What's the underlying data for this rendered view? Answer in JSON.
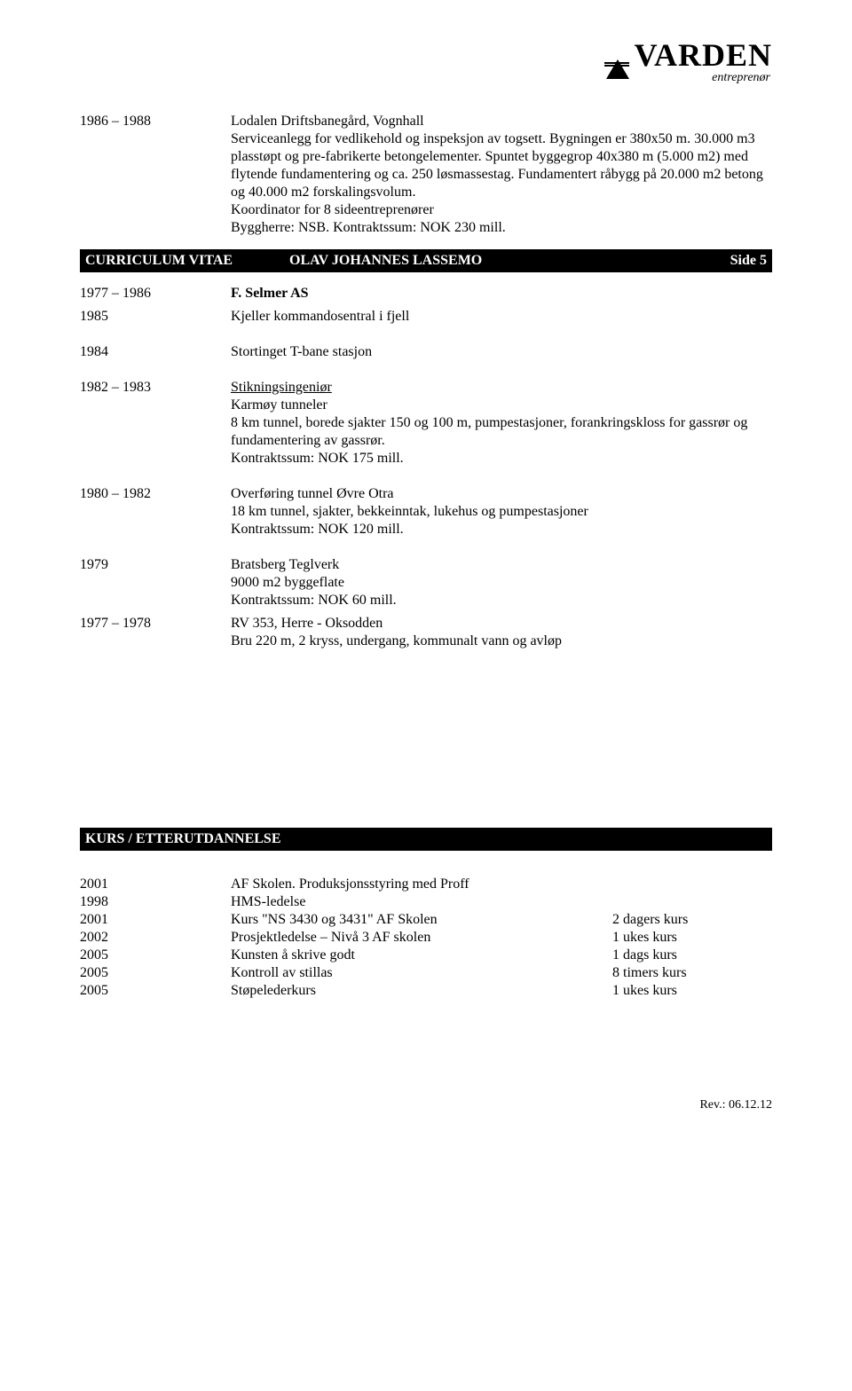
{
  "logo": {
    "text": "VARDEN",
    "sub": "entreprenør"
  },
  "entry1": {
    "year": "1986 – 1988",
    "l1": "Lodalen Driftsbanegård, Vognhall",
    "l2": "Serviceanlegg for vedlikehold og inspeksjon av togsett. Bygningen er 380x50 m. 30.000 m3 plasstøpt og pre-fabrikerte betongelementer. Spuntet byggegrop 40x380 m (5.000 m2) med flytende fundamentering og ca. 250 løsmassestag. Fundamentert råbygg på 20.000 m2 betong og 40.000 m2 forskalingsvolum.",
    "l3": "Koordinator for 8 sideentreprenører",
    "l4": "Byggherre: NSB. Kontraktssum: NOK 230 mill."
  },
  "section": {
    "left": "CURRICULUM VITAE",
    "center": "OLAV  JOHANNES  LASSEMO",
    "right": "Side 5"
  },
  "e1977_1986": {
    "year": "1977 – 1986",
    "text": "F. Selmer AS"
  },
  "e1985": {
    "year": "1985",
    "text": "Kjeller kommandosentral i fjell"
  },
  "e1984": {
    "year": "1984",
    "text": "Stortinget T-bane stasjon"
  },
  "e1982_1983": {
    "year": "1982 – 1983",
    "title": "Stikningsingeniør",
    "l1": "Karmøy tunneler",
    "l2": "8 km tunnel, borede sjakter 150 og 100 m, pumpestasjoner, forankringskloss for gassrør og fundamentering av gassrør.",
    "l3": "Kontraktssum: NOK 175 mill."
  },
  "e1980_1982": {
    "year": "1980 – 1982",
    "l1": "Overføring tunnel Øvre Otra",
    "l2": "18 km tunnel, sjakter, bekkeinntak, lukehus og pumpestasjoner",
    "l3": "Kontraktssum: NOK 120 mill."
  },
  "e1979": {
    "year": "1979",
    "l1": "Bratsberg Teglverk",
    "l2": "9000 m2 byggeflate",
    "l3": "Kontraktssum: NOK 60 mill."
  },
  "e1977_1978": {
    "year": "1977 – 1978",
    "l1": "RV 353, Herre - Oksodden",
    "l2": "Bru 220 m, 2 kryss, undergang, kommunalt vann og avløp"
  },
  "courses_header": "KURS / ETTERUTDANNELSE",
  "courses": {
    "r0": {
      "year": "2001",
      "main": "AF Skolen. Produksjonsstyring med Proff",
      "dur": ""
    },
    "r1": {
      "year": "1998",
      "main": "HMS-ledelse",
      "dur": ""
    },
    "r2": {
      "year": "2001",
      "main": "Kurs \"NS 3430 og 3431\"    AF Skolen",
      "dur": "2 dagers kurs"
    },
    "r3": {
      "year": "2002",
      "main": "Prosjektledelse – Nivå 3     AF skolen",
      "dur": "1 ukes kurs"
    },
    "r4": {
      "year": "2005",
      "main": "Kunsten å skrive godt",
      "dur": "1 dags kurs"
    },
    "r5": {
      "year": "2005",
      "main": "Kontroll av stillas",
      "dur": "8 timers kurs"
    },
    "r6": {
      "year": "2005",
      "main": "Støpelederkurs",
      "dur": "1 ukes kurs"
    }
  },
  "rev": "Rev.: 06.12.12"
}
